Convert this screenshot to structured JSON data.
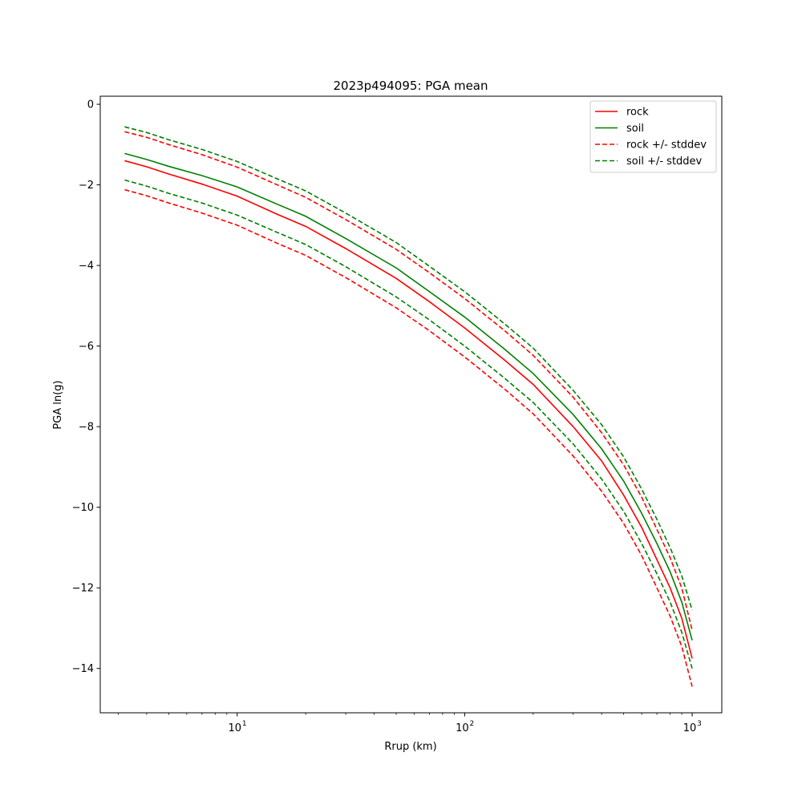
{
  "chart_data": {
    "type": "line",
    "title": "2023p494095: PGA mean",
    "xlabel": "Rrup (km)",
    "ylabel": "PGA ln(g)",
    "xscale": "log",
    "xlim": [
      2.5,
      1350
    ],
    "ylim": [
      -15.1,
      0.2
    ],
    "grid": false,
    "legend_position": "top-right",
    "x_ticks": [
      {
        "value": 10,
        "base": "10",
        "exp": "1"
      },
      {
        "value": 100,
        "base": "10",
        "exp": "2"
      },
      {
        "value": 1000,
        "base": "10",
        "exp": "3"
      }
    ],
    "y_ticks": [
      {
        "value": 0,
        "label": "0"
      },
      {
        "value": -2,
        "label": "−2"
      },
      {
        "value": -4,
        "label": "−4"
      },
      {
        "value": -6,
        "label": "−6"
      },
      {
        "value": -8,
        "label": "−8"
      },
      {
        "value": -10,
        "label": "−10"
      },
      {
        "value": -12,
        "label": "−12"
      },
      {
        "value": -14,
        "label": "−14"
      }
    ],
    "x": [
      3.2,
      4,
      5,
      7,
      10,
      15,
      20,
      30,
      50,
      70,
      100,
      150,
      200,
      300,
      400,
      500,
      600,
      700,
      800,
      900,
      1000
    ],
    "series": [
      {
        "name": "rock",
        "color": "#ff0000",
        "dash": "solid",
        "values": [
          -1.4,
          -1.55,
          -1.73,
          -1.98,
          -2.28,
          -2.73,
          -3.03,
          -3.58,
          -4.32,
          -4.9,
          -5.55,
          -6.35,
          -6.95,
          -8.0,
          -8.85,
          -9.7,
          -10.5,
          -11.3,
          -12.0,
          -12.75,
          -13.75
        ]
      },
      {
        "name": "soil",
        "color": "#008000",
        "dash": "solid",
        "values": [
          -1.22,
          -1.37,
          -1.54,
          -1.77,
          -2.05,
          -2.48,
          -2.78,
          -3.33,
          -4.06,
          -4.65,
          -5.28,
          -6.08,
          -6.68,
          -7.7,
          -8.55,
          -9.35,
          -10.15,
          -10.9,
          -11.6,
          -12.35,
          -13.3
        ]
      },
      {
        "name": "rock +/- stddev",
        "color": "#ff0000",
        "dash": "dashed",
        "values": [
          -0.68,
          -0.82,
          -1.0,
          -1.25,
          -1.56,
          -2.0,
          -2.31,
          -2.86,
          -3.6,
          -4.18,
          -4.82,
          -5.62,
          -6.23,
          -7.27,
          -8.15,
          -8.95,
          -9.75,
          -10.55,
          -11.25,
          -12.0,
          -13.05
        ]
      },
      {
        "name": "",
        "color": "#ff0000",
        "dash": "dashed",
        "values": [
          -2.12,
          -2.27,
          -2.45,
          -2.7,
          -3.0,
          -3.45,
          -3.75,
          -4.3,
          -5.05,
          -5.62,
          -6.27,
          -7.07,
          -7.68,
          -8.73,
          -9.6,
          -10.4,
          -11.2,
          -12.0,
          -12.7,
          -13.45,
          -14.45
        ]
      },
      {
        "name": "soil +/- stddev",
        "color": "#008000",
        "dash": "dashed",
        "values": [
          -0.56,
          -0.7,
          -0.88,
          -1.12,
          -1.42,
          -1.85,
          -2.15,
          -2.7,
          -3.43,
          -4.02,
          -4.65,
          -5.45,
          -6.05,
          -7.1,
          -7.95,
          -8.75,
          -9.55,
          -10.3,
          -11.0,
          -11.7,
          -12.55
        ]
      },
      {
        "name": "",
        "color": "#008000",
        "dash": "dashed",
        "values": [
          -1.88,
          -2.03,
          -2.21,
          -2.45,
          -2.75,
          -3.18,
          -3.48,
          -4.03,
          -4.78,
          -5.35,
          -6.0,
          -6.8,
          -7.4,
          -8.43,
          -9.3,
          -10.1,
          -10.9,
          -11.65,
          -12.35,
          -13.1,
          -14.0
        ]
      }
    ],
    "legend": [
      {
        "label": "rock",
        "color": "#ff0000",
        "dash": "solid"
      },
      {
        "label": "soil",
        "color": "#008000",
        "dash": "solid"
      },
      {
        "label": "rock +/- stddev",
        "color": "#ff0000",
        "dash": "dashed"
      },
      {
        "label": "soil +/- stddev",
        "color": "#008000",
        "dash": "dashed"
      }
    ]
  }
}
